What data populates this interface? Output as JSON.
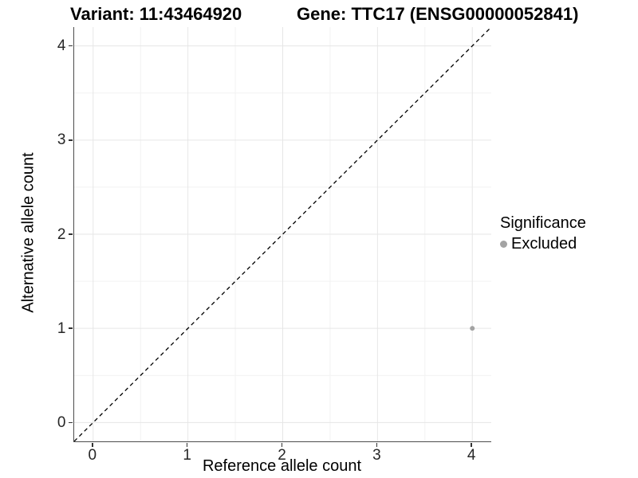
{
  "chart_data": {
    "type": "scatter",
    "title_left": "Variant: 11:43464920",
    "title_right": "Gene: TTC17 (ENSG00000052841)",
    "xlabel": "Reference allele count",
    "ylabel": "Alternative allele count",
    "xlim": [
      -0.2,
      4.2
    ],
    "ylim": [
      -0.2,
      4.2
    ],
    "x_ticks": [
      0,
      1,
      2,
      3,
      4
    ],
    "y_ticks": [
      0,
      1,
      2,
      3,
      4
    ],
    "x_minor_ticks": [
      0.5,
      1.5,
      2.5,
      3.5
    ],
    "y_minor_ticks": [
      0.5,
      1.5,
      2.5,
      3.5
    ],
    "grid": true,
    "identity_line": {
      "slope": 1,
      "intercept": 0,
      "style": "dashed",
      "color": "#000000"
    },
    "series": [
      {
        "name": "Excluded",
        "color": "#a3a3a3",
        "point_radius": 3,
        "points": [
          {
            "x": 4,
            "y": 1
          }
        ]
      }
    ],
    "legend": {
      "title": "Significance",
      "position": "right",
      "entries": [
        {
          "label": "Excluded",
          "color": "#a3a3a3"
        }
      ]
    },
    "style": {
      "background": "#ffffff",
      "axis_line_color": "#4d4d4d",
      "tick_color": "#333333",
      "tick_label_color": "#262626",
      "grid_major_color": "#e6e6e6",
      "grid_minor_color": "#f2f2f2"
    }
  }
}
